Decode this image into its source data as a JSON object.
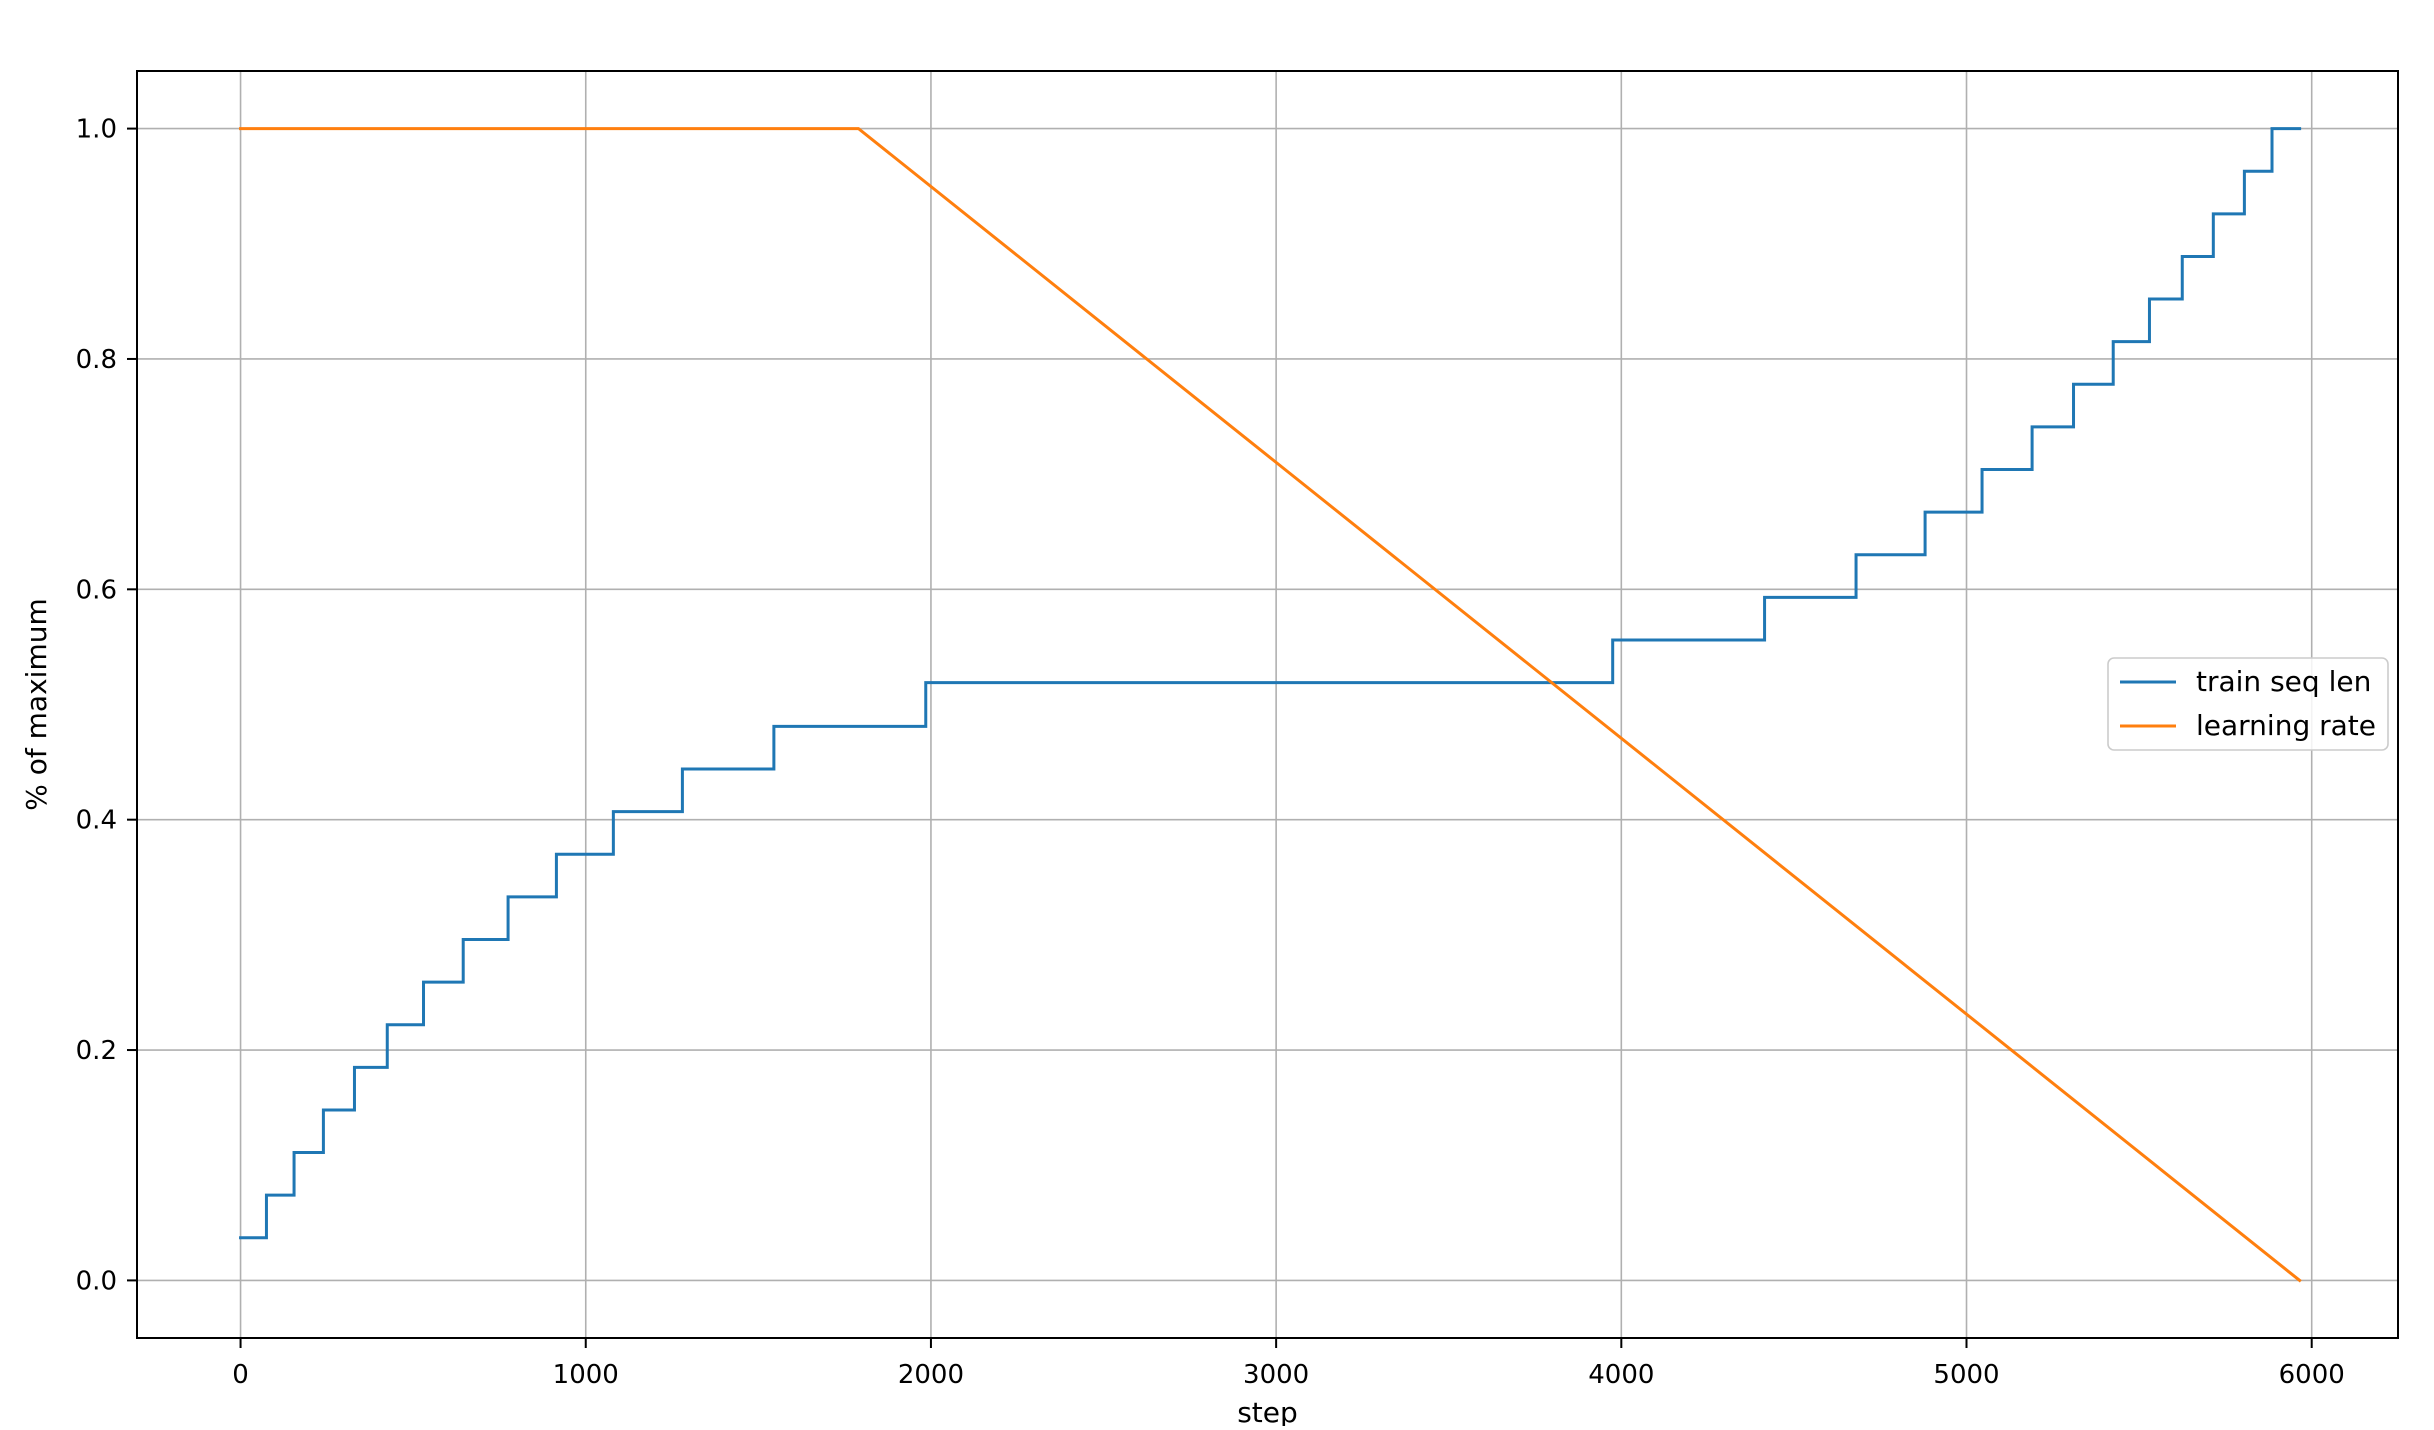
{
  "chart_data": {
    "type": "line",
    "xlabel": "step",
    "ylabel": "% of maximum",
    "xlim": [
      -300,
      6250
    ],
    "ylim": [
      -0.05,
      1.05
    ],
    "xticks": [
      0,
      1000,
      2000,
      3000,
      4000,
      5000,
      6000
    ],
    "yticks": [
      0.0,
      0.2,
      0.4,
      0.6,
      0.8,
      1.0
    ],
    "xtick_labels": [
      "0",
      "1000",
      "2000",
      "3000",
      "4000",
      "5000",
      "6000"
    ],
    "ytick_labels": [
      "0.0",
      "0.2",
      "0.4",
      "0.6",
      "0.8",
      "1.0"
    ],
    "grid": true,
    "legend": "center-right",
    "series": [
      {
        "name": "train seq len",
        "color": "#1f77b4",
        "drawstyle": "steps-post",
        "x": [
          0,
          75,
          155,
          240,
          330,
          425,
          530,
          645,
          775,
          915,
          1080,
          1280,
          1545,
          1985,
          3975,
          4415,
          4680,
          4880,
          5045,
          5190,
          5310,
          5425,
          5530,
          5625,
          5715,
          5805,
          5885,
          5965
        ],
        "y": [
          0.037,
          0.074,
          0.111,
          0.148,
          0.185,
          0.222,
          0.259,
          0.296,
          0.333,
          0.37,
          0.407,
          0.444,
          0.481,
          0.519,
          0.556,
          0.593,
          0.63,
          0.667,
          0.704,
          0.741,
          0.778,
          0.815,
          0.852,
          0.889,
          0.926,
          0.963,
          1.0,
          1.0
        ]
      },
      {
        "name": "learning rate",
        "color": "#ff7f0e",
        "drawstyle": "default",
        "x": [
          0,
          1790,
          5965
        ],
        "y": [
          1.0,
          1.0,
          0.0
        ]
      }
    ]
  }
}
